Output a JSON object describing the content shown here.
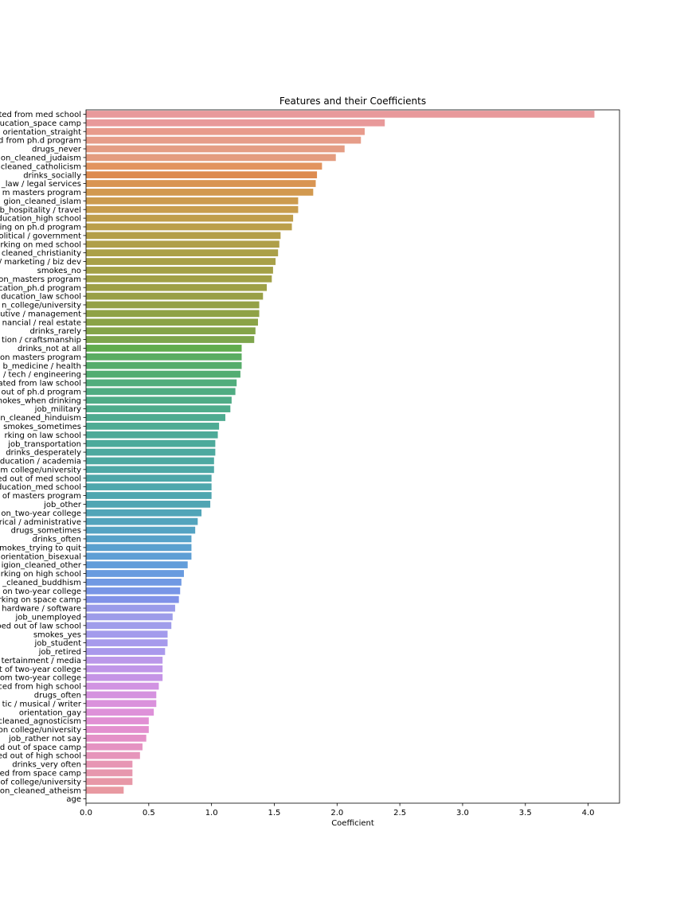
{
  "chart_data": {
    "type": "bar",
    "orientation": "horizontal",
    "title": "Features and their Coefficients",
    "xlabel": "Coefficient",
    "ylabel": "",
    "xlim": [
      0,
      4.25
    ],
    "xticks": [
      "0.0",
      "0.5",
      "1.0",
      "1.5",
      "2.0",
      "2.5",
      "3.0",
      "3.5",
      "4.0"
    ],
    "grid": false,
    "legend": "none",
    "categories": [
      "ated from med school",
      "ducation_space camp",
      "orientation_straight",
      "d from ph.d program",
      "drugs_never",
      "on_cleaned_judaism",
      "cleaned_catholicism",
      "drinks_socially",
      "_law / legal services",
      "m masters program",
      "gion_cleaned_islam",
      "b_hospitality / travel",
      "ducation_high school",
      "ing on ph.d program",
      "olitical / government",
      "rking on med school",
      "cleaned_christianity",
      "/ marketing / biz dev",
      "smokes_no",
      "on_masters program",
      "cation_ph.d program",
      "ducation_law school",
      "n_college/university",
      "utive / management",
      "nancial / real estate",
      "drinks_rarely",
      "tion / craftsmanship",
      "drinks_not at all",
      "on masters program",
      "b_medicine / health",
      "/ tech / engineering",
      "ated from law school",
      "out of ph.d program",
      "mokes_when drinking",
      "job_military",
      "n_cleaned_hinduism",
      "smokes_sometimes",
      "rking on law school",
      "job_transportation",
      "drinks_desperately",
      "ducation / academia",
      "m college/university",
      "ed out of med school",
      "ducation_med school",
      "of masters program",
      "job_other",
      "on_two-year college",
      "rical / administrative",
      "drugs_sometimes",
      "drinks_often",
      "mokes_trying to quit",
      "orientation_bisexual",
      "igion_cleaned_other",
      "rking on high school",
      "_cleaned_buddhism",
      "on two-year college",
      "rking on space camp",
      "hardware / software",
      "job_unemployed",
      "ped out of law school",
      "smokes_yes",
      "job_student",
      "job_retired",
      "tertainment / media",
      "t of two-year college",
      "om two-year college",
      "ced from high school",
      "drugs_often",
      "tic / musical / writer",
      "orientation_gay",
      "cleaned_agnosticism",
      "on college/university",
      "job_rather not say",
      "d out of space camp",
      "ed out of high school",
      "drinks_very often",
      "ed from space camp",
      "of college/university",
      "on_cleaned_atheism",
      "age"
    ],
    "values": [
      4.05,
      2.38,
      2.22,
      2.19,
      2.06,
      1.99,
      1.88,
      1.84,
      1.83,
      1.81,
      1.69,
      1.69,
      1.65,
      1.64,
      1.55,
      1.54,
      1.53,
      1.51,
      1.49,
      1.48,
      1.44,
      1.41,
      1.38,
      1.38,
      1.37,
      1.35,
      1.34,
      1.24,
      1.24,
      1.24,
      1.23,
      1.2,
      1.19,
      1.16,
      1.15,
      1.11,
      1.06,
      1.05,
      1.03,
      1.03,
      1.02,
      1.02,
      1.0,
      1.0,
      1.0,
      0.99,
      0.92,
      0.89,
      0.87,
      0.84,
      0.84,
      0.84,
      0.81,
      0.78,
      0.76,
      0.75,
      0.74,
      0.71,
      0.69,
      0.68,
      0.65,
      0.65,
      0.63,
      0.61,
      0.61,
      0.61,
      0.58,
      0.56,
      0.56,
      0.54,
      0.5,
      0.5,
      0.48,
      0.45,
      0.43,
      0.37,
      0.37,
      0.37,
      0.3,
      0.0
    ],
    "colors": [
      "#e8999b",
      "#e8999a",
      "#e89b8c",
      "#e69d89",
      "#e49d84",
      "#e49c7f",
      "#e2945f",
      "#dd8b4f",
      "#d99552",
      "#d2994f",
      "#cc9b4e",
      "#c89d4d",
      "#c09e4b",
      "#bb9f4a",
      "#b49f49",
      "#af9f49",
      "#aba048",
      "#a8a048",
      "#a3a047",
      "#a1a047",
      "#9ea046",
      "#99a046",
      "#94a146",
      "#8fa246",
      "#8aa347",
      "#84a449",
      "#7ea54c",
      "#61ac4d",
      "#5bad62",
      "#56ad6b",
      "#53ad72",
      "#51ad7c",
      "#50ac82",
      "#50ac87",
      "#4fac8b",
      "#4eab90",
      "#4eab94",
      "#4daa98",
      "#4daa9b",
      "#4da99f",
      "#4da9a2",
      "#4ea8a6",
      "#4ea7a9",
      "#4fa7ad",
      "#4fa6b0",
      "#50a5b3",
      "#51a5b8",
      "#53a4bd",
      "#55a3c3",
      "#57a2c9",
      "#5aa0cf",
      "#5e9fd5",
      "#629dda",
      "#689bdf",
      "#7099e3",
      "#7896e6",
      "#8092e8",
      "#9a9be9",
      "#9d9ce9",
      "#a09deb",
      "#a39bec",
      "#a69aec",
      "#a999ec",
      "#bb98e9",
      "#c096e8",
      "#c594e6",
      "#d193e2",
      "#d592df",
      "#da91dc",
      "#de91d9",
      "#e190d4",
      "#e390cf",
      "#e491c8",
      "#e593c2",
      "#e695bb",
      "#e796b4",
      "#e797ae",
      "#e798a7",
      "#e899a1",
      "#e8999c"
    ]
  }
}
